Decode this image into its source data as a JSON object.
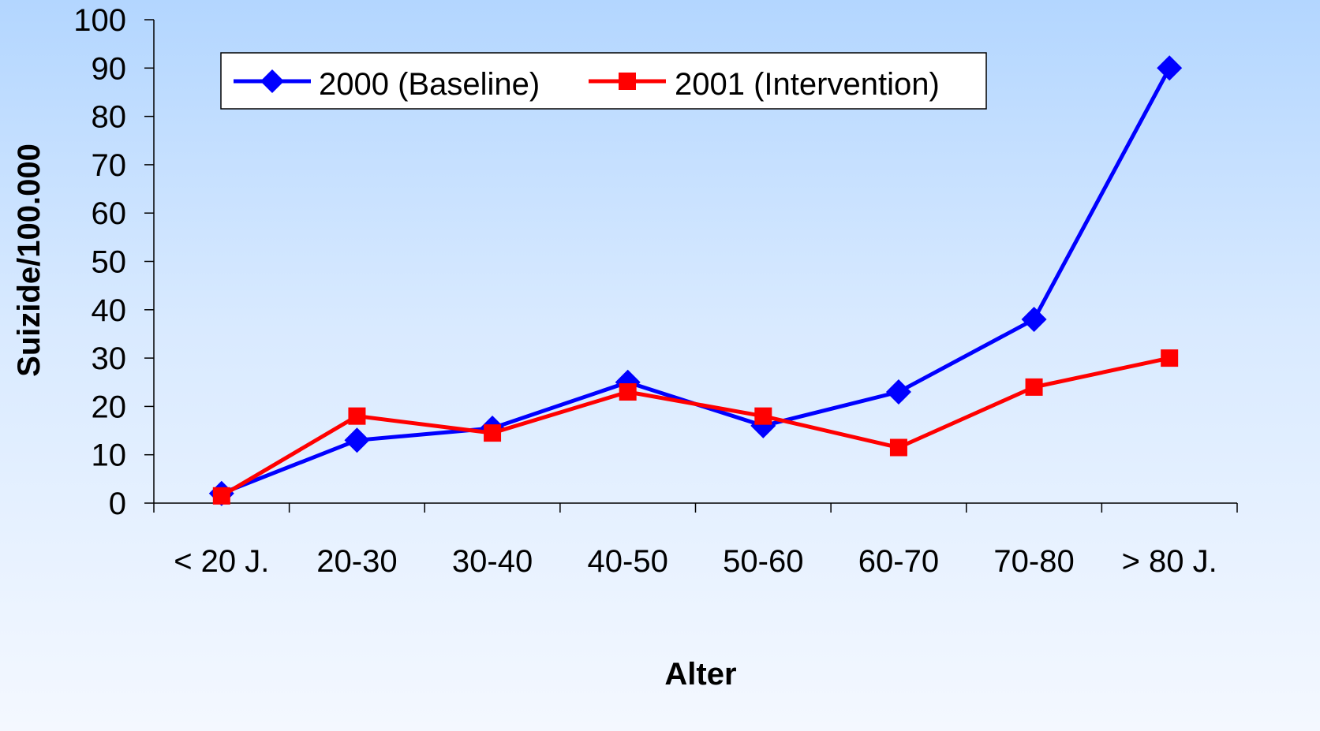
{
  "chart_data": {
    "type": "line",
    "categories": [
      "< 20 J.",
      "20-30",
      "30-40",
      "40-50",
      "50-60",
      "60-70",
      "70-80",
      "> 80 J."
    ],
    "series": [
      {
        "name": "2000 (Baseline)",
        "color": "#0000ff",
        "marker": "diamond",
        "values": [
          2,
          13,
          15.5,
          25,
          16,
          23,
          38,
          90
        ]
      },
      {
        "name": "2001 (Intervention)",
        "color": "#ff0000",
        "marker": "square",
        "values": [
          1.5,
          18,
          14.5,
          23,
          18,
          11.5,
          24,
          30
        ]
      }
    ],
    "xlabel": "Alter",
    "ylabel": "Suizide/100.000",
    "ylim": [
      0,
      100
    ],
    "yticks": [
      0,
      10,
      20,
      30,
      40,
      50,
      60,
      70,
      80,
      90,
      100
    ],
    "grid": false,
    "legend": "top"
  }
}
